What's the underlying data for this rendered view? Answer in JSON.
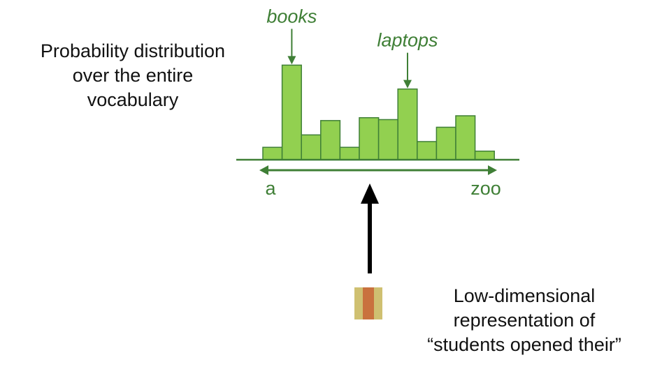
{
  "probability_label": {
    "lines": [
      "Probability distribution",
      "over the entire",
      "vocabulary"
    ]
  },
  "representation_label": {
    "lines": [
      "Low-dimensional",
      "representation of",
      "“students opened their”"
    ]
  },
  "vocab_axis": {
    "start_label": "a",
    "end_label": "zoo"
  },
  "chart_data": {
    "type": "bar",
    "values": [
      0.13,
      0.99,
      0.26,
      0.41,
      0.13,
      0.44,
      0.42,
      0.74,
      0.19,
      0.34,
      0.46,
      0.09
    ],
    "ylim": [
      0,
      1
    ],
    "annotations": [
      {
        "text": "books",
        "bar_index": 1
      },
      {
        "text": "laptops",
        "bar_index": 7
      }
    ]
  },
  "representation_vector": {
    "stripe_colors": [
      "#CFC071",
      "#C9723E",
      "#CFC071"
    ]
  },
  "colors": {
    "bar_fill": "#92D050",
    "bar_stroke": "#3F7F36",
    "accent_green": "#3F7F36",
    "arrow": "#000000"
  }
}
